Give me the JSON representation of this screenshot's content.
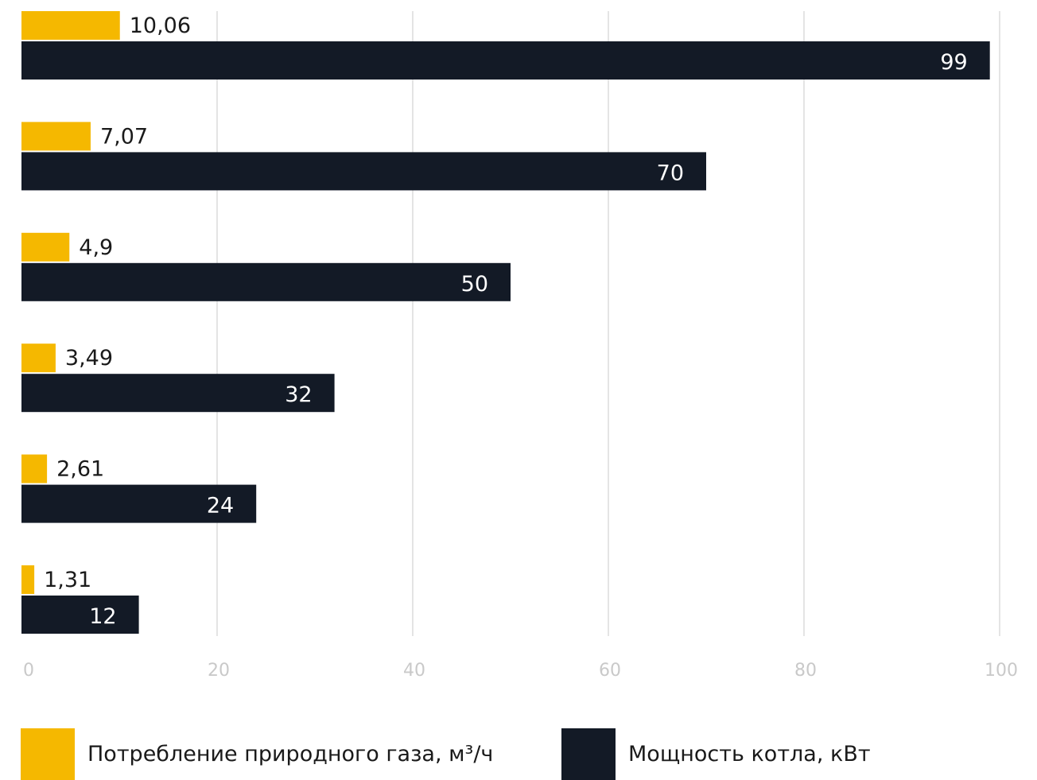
{
  "chart_data": {
    "type": "bar",
    "orientation": "horizontal",
    "categories": [
      "",
      "",
      "",
      "",
      "",
      ""
    ],
    "series": [
      {
        "name": "Потребление природного газа, м³/ч",
        "values": [
          10.06,
          7.07,
          4.9,
          3.49,
          2.61,
          1.31
        ],
        "labels": [
          "10,06",
          "7,07",
          "4,9",
          "3,49",
          "2,61",
          "1,31"
        ],
        "color": "#f5b800"
      },
      {
        "name": "Мощность котла, кВт",
        "values": [
          99,
          70,
          50,
          32,
          24,
          12
        ],
        "labels": [
          "99",
          "70",
          "50",
          "32",
          "24",
          "12"
        ],
        "color": "#131a26"
      }
    ],
    "xlim": [
      0,
      100
    ],
    "xticks": [
      "0",
      "20",
      "40",
      "60",
      "80",
      "100"
    ],
    "grid": true,
    "legend_position": "bottom",
    "title": "",
    "xlabel": "",
    "ylabel": ""
  }
}
